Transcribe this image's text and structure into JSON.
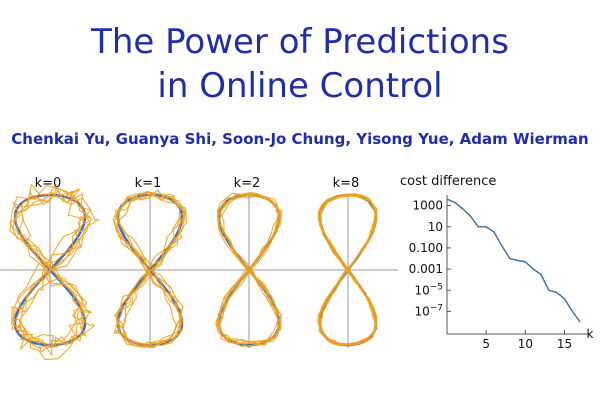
{
  "header": {
    "title_line1": "The Power of Predictions",
    "title_line2": "in Online Control",
    "authors": "Chenkai Yu, Guanya Shi, Soon-Jo Chung, Yisong Yue, Adam Wierman"
  },
  "colors": {
    "title": "#1f2ea8",
    "reference": "#3a6ebf",
    "trajectories": "#f0a21e",
    "axis": "#bbbbbb",
    "line": "#3d6aa6"
  },
  "panels": [
    {
      "label": "k=0"
    },
    {
      "label": "k=1"
    },
    {
      "label": "k=2"
    },
    {
      "label": "k=8"
    }
  ],
  "chart_data": [
    {
      "type": "line",
      "title": "cost difference",
      "xlabel": "k",
      "ylabel": "",
      "log_y": true,
      "x_ticks": [
        "5",
        "10",
        "15"
      ],
      "y_ticks": [
        "1000",
        "10",
        "0.100",
        "0.001",
        "10^-5",
        "10^-7"
      ],
      "xlim": [
        0,
        18
      ],
      "ylim_log10": [
        -8,
        4
      ],
      "x": [
        0,
        1,
        2,
        3,
        4,
        5,
        6,
        7,
        8,
        9,
        10,
        11,
        12,
        13,
        14,
        15,
        16,
        17
      ],
      "y_log10": [
        3.6,
        3.3,
        2.7,
        2.0,
        1.0,
        1.0,
        0.5,
        -0.8,
        -2.0,
        -2.2,
        -2.3,
        -3.0,
        -3.5,
        -5.0,
        -5.2,
        -5.8,
        -7.0,
        -8.0
      ]
    }
  ]
}
